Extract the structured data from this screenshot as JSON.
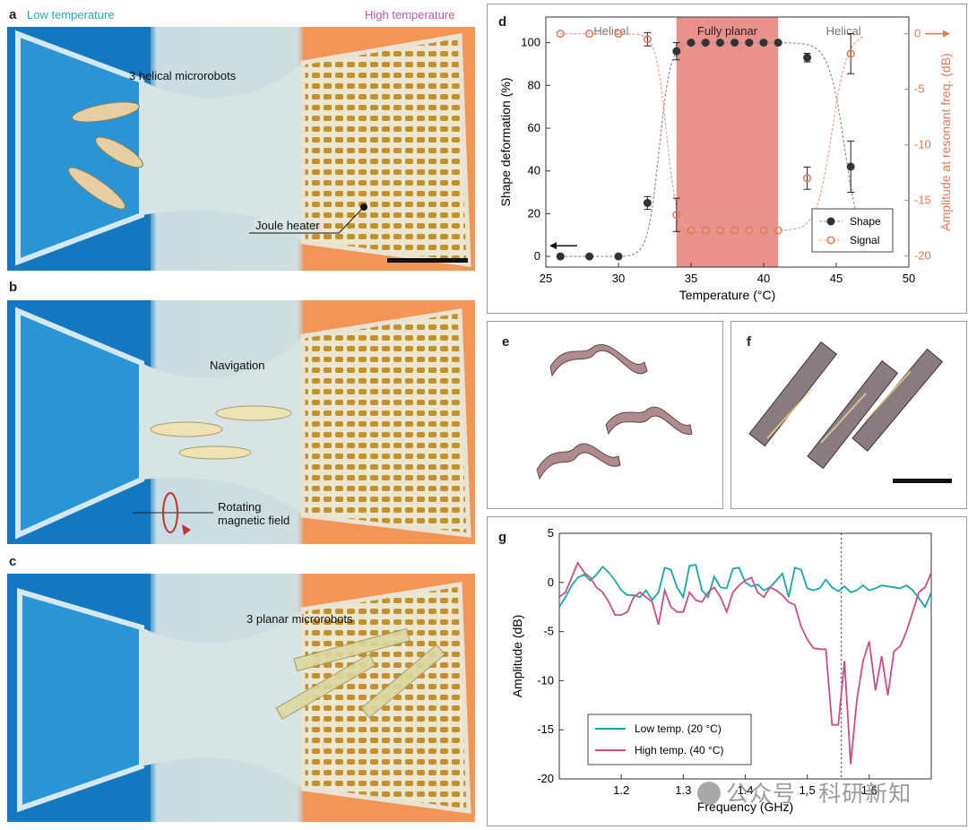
{
  "panel_labels": {
    "a": "a",
    "b": "b",
    "c": "c",
    "d": "d",
    "e": "e",
    "f": "f",
    "g": "g"
  },
  "panel_a": {
    "low_temperature": "Low temperature",
    "high_temperature": "High temperature",
    "helical_microrobots": "3 helical microrobots",
    "joule_heater": "Joule heater"
  },
  "panel_b": {
    "navigation": "Navigation",
    "rotating_field_line1": "Rotating",
    "rotating_field_line2": "magnetic field"
  },
  "panel_c": {
    "planar_microrobots": "3 planar microrobots"
  },
  "colors": {
    "cold_blue": "#1a7fc4",
    "hot_orange": "#f08a4e",
    "shape_series": "#333333",
    "signal_series": "#e07a55",
    "planar_band": "#e9928c",
    "low_temp_line": "#1aa6a6",
    "high_temp_line": "#cc4d85"
  },
  "watermark": "公众号 · 科研新知",
  "chart_data": [
    {
      "id": "d",
      "type": "scatter",
      "xlabel": "Temperature (°C)",
      "ylabel": "Shape deformation (%)",
      "y2label": "Amplitude at resonant freq. (dB)",
      "xlim": [
        25,
        50
      ],
      "ylim": [
        -5,
        112
      ],
      "y2lim": [
        -21,
        1.5
      ],
      "xticks": [
        25,
        30,
        35,
        40,
        45,
        50
      ],
      "yticks": [
        0,
        20,
        40,
        60,
        80,
        100
      ],
      "y2ticks": [
        0,
        -5,
        -10,
        -15,
        -20
      ],
      "regions": [
        {
          "label": "Helical",
          "from": 25,
          "to": 34
        },
        {
          "label": "Fully planar",
          "from": 34,
          "to": 41,
          "highlight": true
        },
        {
          "label": "Helical",
          "from": 41,
          "to": 50
        }
      ],
      "series": [
        {
          "name": "Shape",
          "axis": "left",
          "x": [
            26,
            28,
            30,
            32,
            34,
            36,
            38,
            40,
            43,
            46
          ],
          "y": [
            0,
            0,
            0,
            25,
            96,
            100,
            100,
            100,
            93,
            42
          ],
          "err": [
            0,
            0,
            0,
            3,
            4,
            0,
            0,
            0,
            2,
            12
          ],
          "extra_x": [
            35,
            37,
            39,
            41
          ],
          "extra_y": [
            100,
            100,
            100,
            100
          ]
        },
        {
          "name": "Signal",
          "axis": "right",
          "x": [
            26,
            28,
            30,
            32,
            34,
            35,
            36,
            37,
            38,
            39,
            40,
            41,
            43,
            46
          ],
          "y": [
            0,
            0,
            0,
            -0.5,
            -16.3,
            -17.7,
            -17.7,
            -17.7,
            -17.7,
            -17.7,
            -17.7,
            -17.7,
            -13,
            -1.8
          ],
          "err": [
            0,
            0,
            0,
            0.6,
            1.5,
            0,
            0,
            0,
            0,
            0,
            0,
            0,
            1,
            1.8
          ]
        }
      ],
      "legend": [
        "Shape",
        "Signal"
      ],
      "legend_position": "bottom-right"
    },
    {
      "id": "g",
      "type": "line",
      "xlabel": "Frequency (GHz)",
      "ylabel": "Amplitude (dB)",
      "xlim": [
        1.1,
        1.7
      ],
      "ylim": [
        -20,
        5
      ],
      "xticks": [
        1.2,
        1.3,
        1.4,
        1.5,
        1.6
      ],
      "yticks": [
        5,
        0,
        -5,
        -10,
        -15,
        -20
      ],
      "marker_x": 1.555,
      "series": [
        {
          "name": "Low temp. (20 °C)",
          "x": [
            1.1,
            1.11,
            1.12,
            1.13,
            1.14,
            1.15,
            1.16,
            1.17,
            1.18,
            1.19,
            1.2,
            1.21,
            1.22,
            1.23,
            1.24,
            1.25,
            1.26,
            1.27,
            1.28,
            1.29,
            1.3,
            1.31,
            1.32,
            1.33,
            1.34,
            1.35,
            1.36,
            1.37,
            1.38,
            1.39,
            1.4,
            1.41,
            1.42,
            1.43,
            1.44,
            1.45,
            1.46,
            1.47,
            1.48,
            1.49,
            1.5,
            1.51,
            1.52,
            1.53,
            1.54,
            1.55,
            1.56,
            1.57,
            1.58,
            1.59,
            1.6,
            1.61,
            1.62,
            1.63,
            1.64,
            1.65,
            1.66,
            1.67,
            1.68,
            1.69,
            1.7
          ],
          "y": [
            -2.5,
            -1.5,
            -0.3,
            0.5,
            0.8,
            0.2,
            0.8,
            1.6,
            1.0,
            0.2,
            -0.8,
            -1.3,
            -1.3,
            -1.5,
            -0.8,
            -1.8,
            -1.0,
            1.5,
            1.3,
            -0.5,
            -1.5,
            1.7,
            1.8,
            -0.8,
            -1.5,
            0.6,
            -0.5,
            -0.6,
            1.4,
            1.5,
            0.0,
            -0.4,
            -0.2,
            -0.8,
            -0.5,
            0.2,
            0.9,
            -1.5,
            1.5,
            1.3,
            -0.6,
            -0.8,
            -0.6,
            0.3,
            -0.5,
            -0.9,
            -0.4,
            -1.0,
            -0.8,
            -0.3,
            -0.8,
            -0.6,
            -0.3,
            -0.4,
            -0.5,
            -0.6,
            -0.3,
            -0.8,
            -1.6,
            -2.5,
            -1.0
          ]
        },
        {
          "name": "High temp. (40 °C)",
          "x": [
            1.1,
            1.11,
            1.12,
            1.13,
            1.14,
            1.15,
            1.16,
            1.17,
            1.18,
            1.19,
            1.2,
            1.21,
            1.22,
            1.23,
            1.24,
            1.25,
            1.26,
            1.27,
            1.28,
            1.29,
            1.3,
            1.31,
            1.32,
            1.33,
            1.34,
            1.35,
            1.36,
            1.37,
            1.38,
            1.39,
            1.4,
            1.41,
            1.42,
            1.43,
            1.44,
            1.45,
            1.46,
            1.47,
            1.48,
            1.49,
            1.5,
            1.51,
            1.52,
            1.53,
            1.54,
            1.55,
            1.56,
            1.57,
            1.58,
            1.59,
            1.6,
            1.61,
            1.62,
            1.63,
            1.64,
            1.65,
            1.66,
            1.67,
            1.68,
            1.69,
            1.7
          ],
          "y": [
            -1.5,
            -1.0,
            0.5,
            2.0,
            1.0,
            0.5,
            -0.5,
            -1.0,
            -2.0,
            -3.3,
            -3.3,
            -3.0,
            -1.5,
            -1.0,
            -1.5,
            -2.0,
            -4.3,
            -0.8,
            -2.5,
            -3.0,
            -3.0,
            -1.0,
            -1.8,
            -2.0,
            -1.0,
            -0.5,
            -1.5,
            -3.0,
            -1.0,
            -0.3,
            0.2,
            0.5,
            -1.0,
            -1.5,
            -0.5,
            -0.8,
            -1.3,
            -2.0,
            -2.3,
            -4.5,
            -5.8,
            -6.7,
            -6.8,
            -6.8,
            -14.5,
            -14.5,
            -8.0,
            -18.5,
            -12.0,
            -8.0,
            -6.0,
            -11.0,
            -7.5,
            -11.5,
            -7.0,
            -6.5,
            -5.0,
            -3.0,
            -1.0,
            -0.5,
            1.0
          ]
        }
      ],
      "legend": [
        "Low temp. (20 °C)",
        "High temp. (40 °C)"
      ],
      "legend_position": "bottom-left"
    }
  ]
}
